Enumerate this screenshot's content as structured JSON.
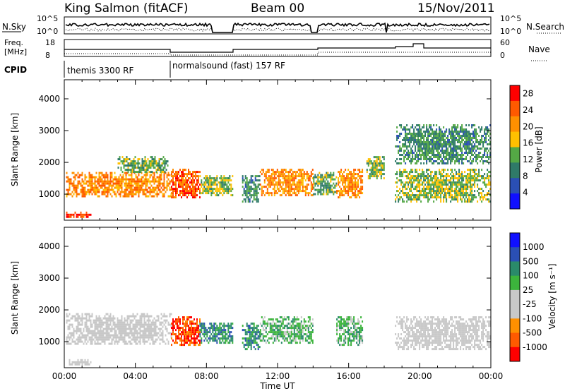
{
  "header": {
    "station": "King Salmon (fitACF)",
    "beam": "Beam 00",
    "date": "15/Nov/2011"
  },
  "side_labels": {
    "nsky": "N.Sky",
    "nsearch": "N.Search",
    "freq_line1": "Freq.",
    "freq_line2": "[MHz]",
    "nave": "Nave",
    "cpid": "CPID"
  },
  "small_axes": {
    "noise_left_ticks": [
      "10^5",
      "10^0"
    ],
    "noise_right_ticks": [
      "10^5",
      "10^0"
    ],
    "freq_left_ticks": [
      "18",
      "8"
    ],
    "nave_right_ticks": [
      "60",
      "0"
    ]
  },
  "cpid_segments": [
    {
      "label": "themis 3300 RF",
      "start_hour": 0
    },
    {
      "label": "normalsound (fast) 157 RF",
      "start_hour": 6
    }
  ],
  "colors": {
    "power": [
      "#1010ff",
      "#2a4fb4",
      "#2f7a68",
      "#54a845",
      "#ffc000",
      "#ff9000",
      "#ff5a00",
      "#ff0000"
    ],
    "velocity": [
      "#ff0000",
      "#ff5a00",
      "#ff9000",
      "#c8c8c8",
      "#c8c8c8",
      "#3cb43c",
      "#2a8a6a",
      "#2a4fb4",
      "#1010ff"
    ],
    "ground_scatter": "#c8c8c8"
  },
  "chart_data": [
    {
      "type": "heatmap",
      "name": "power",
      "xlabel": "",
      "ylabel": "Slant Range [km]",
      "x_ticks": [
        "00:00",
        "04:00",
        "08:00",
        "12:00",
        "16:00",
        "20:00",
        "00:00"
      ],
      "xlim_hours": [
        0,
        24
      ],
      "y_ticks": [
        1000,
        2000,
        3000,
        4000
      ],
      "ylim": [
        180,
        4600
      ],
      "colorbar": {
        "label": "Power [dB]",
        "ticks": [
          4,
          8,
          12,
          16,
          20,
          24,
          28
        ],
        "range": [
          0,
          30
        ]
      },
      "scatter_regions": [
        {
          "t": [
            0.1,
            1.5
          ],
          "r": [
            300,
            450
          ],
          "level": 28
        },
        {
          "t": [
            0.1,
            6.0
          ],
          "r": [
            950,
            1700
          ],
          "level": 22
        },
        {
          "t": [
            3.0,
            5.8
          ],
          "r": [
            1700,
            2200
          ],
          "level": 12
        },
        {
          "t": [
            6.0,
            7.6
          ],
          "r": [
            900,
            1800
          ],
          "level": 26
        },
        {
          "t": [
            7.6,
            9.5
          ],
          "r": [
            1000,
            1600
          ],
          "level": 14
        },
        {
          "t": [
            10.0,
            11.0
          ],
          "r": [
            800,
            1600
          ],
          "level": 10
        },
        {
          "t": [
            11.0,
            14.0
          ],
          "r": [
            1000,
            1800
          ],
          "level": 22
        },
        {
          "t": [
            14.0,
            15.3
          ],
          "r": [
            1000,
            1700
          ],
          "level": 12
        },
        {
          "t": [
            15.3,
            16.8
          ],
          "r": [
            900,
            1800
          ],
          "level": 22
        },
        {
          "t": [
            17.0,
            18.0
          ],
          "r": [
            1500,
            2200
          ],
          "level": 14
        },
        {
          "t": [
            18.6,
            24.0
          ],
          "r": [
            800,
            1800
          ],
          "level": 14
        },
        {
          "t": [
            18.6,
            24.0
          ],
          "r": [
            2000,
            3200
          ],
          "level": 10
        }
      ]
    },
    {
      "type": "heatmap",
      "name": "velocity",
      "xlabel": "Time UT",
      "ylabel": "Slant Range [km]",
      "x_ticks": [
        "00:00",
        "04:00",
        "08:00",
        "12:00",
        "16:00",
        "20:00",
        "00:00"
      ],
      "xlim_hours": [
        0,
        24
      ],
      "y_ticks": [
        1000,
        2000,
        3000,
        4000
      ],
      "ylim": [
        180,
        4600
      ],
      "colorbar": {
        "label": "Velocity [m s⁻¹]",
        "ticks": [
          "1000",
          "500",
          "100",
          "25",
          "-25",
          "-100",
          "-500",
          "-1000"
        ]
      },
      "scatter_regions": [
        {
          "t": [
            0.1,
            1.5
          ],
          "r": [
            300,
            450
          ],
          "class": "ground"
        },
        {
          "t": [
            0.1,
            6.0
          ],
          "r": [
            950,
            1900
          ],
          "class": "ground"
        },
        {
          "t": [
            6.0,
            7.6
          ],
          "r": [
            900,
            1800
          ],
          "class": "away_fast"
        },
        {
          "t": [
            7.6,
            9.5
          ],
          "r": [
            1000,
            1600
          ],
          "class": "toward"
        },
        {
          "t": [
            10.0,
            11.0
          ],
          "r": [
            800,
            1600
          ],
          "class": "toward"
        },
        {
          "t": [
            11.0,
            14.0
          ],
          "r": [
            1000,
            1800
          ],
          "class": "toward_slow"
        },
        {
          "t": [
            15.3,
            16.8
          ],
          "r": [
            900,
            1800
          ],
          "class": "toward_slow"
        },
        {
          "t": [
            18.6,
            24.0
          ],
          "r": [
            800,
            1800
          ],
          "class": "ground"
        }
      ]
    }
  ]
}
